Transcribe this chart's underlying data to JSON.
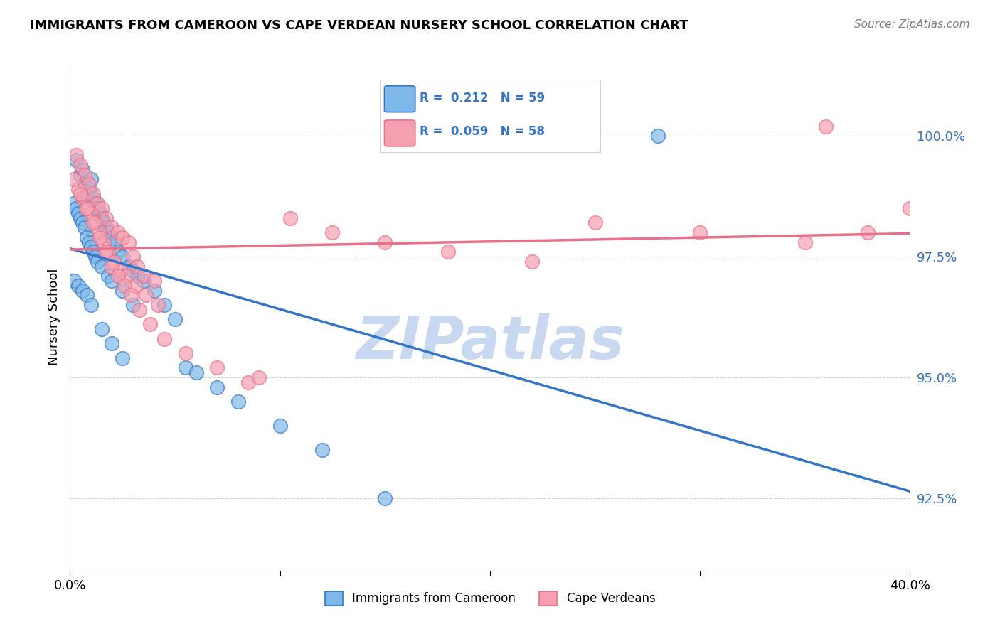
{
  "title": "IMMIGRANTS FROM CAMEROON VS CAPE VERDEAN NURSERY SCHOOL CORRELATION CHART",
  "source": "Source: ZipAtlas.com",
  "ylabel": "Nursery School",
  "ytick_labels": [
    "92.5%",
    "95.0%",
    "97.5%",
    "100.0%"
  ],
  "ytick_values": [
    92.5,
    95.0,
    97.5,
    100.0
  ],
  "xlim": [
    0.0,
    40.0
  ],
  "ylim": [
    91.0,
    101.5
  ],
  "color_blue": "#7EB8E8",
  "color_pink": "#F5A0B0",
  "color_blue_line": "#3575C8",
  "color_pink_line": "#E8708A",
  "color_blue_text": "#3575C8",
  "watermark_color": "#C8D8F0",
  "background": "#FFFFFF",
  "blue_x": [
    0.3,
    0.5,
    0.6,
    0.7,
    0.8,
    0.9,
    1.0,
    1.1,
    1.2,
    1.3,
    1.4,
    1.5,
    1.6,
    1.7,
    1.8,
    2.0,
    2.1,
    2.3,
    2.5,
    2.8,
    3.0,
    3.2,
    3.5,
    4.0,
    4.5,
    5.0,
    0.2,
    0.3,
    0.4,
    0.5,
    0.6,
    0.7,
    0.8,
    0.9,
    1.0,
    1.1,
    1.2,
    1.3,
    1.5,
    1.8,
    2.0,
    2.5,
    3.0,
    0.2,
    0.4,
    0.6,
    0.8,
    1.0,
    1.5,
    2.0,
    2.5,
    5.5,
    6.0,
    7.0,
    8.0,
    10.0,
    12.0,
    15.0,
    28.0
  ],
  "blue_y": [
    99.5,
    99.2,
    99.3,
    99.0,
    98.8,
    98.9,
    99.1,
    98.7,
    98.6,
    98.5,
    98.4,
    98.3,
    98.2,
    98.1,
    98.0,
    97.9,
    97.8,
    97.6,
    97.5,
    97.3,
    97.2,
    97.1,
    97.0,
    96.8,
    96.5,
    96.2,
    98.6,
    98.5,
    98.4,
    98.3,
    98.2,
    98.1,
    97.9,
    97.8,
    97.7,
    97.6,
    97.5,
    97.4,
    97.3,
    97.1,
    97.0,
    96.8,
    96.5,
    97.0,
    96.9,
    96.8,
    96.7,
    96.5,
    96.0,
    95.7,
    95.4,
    95.2,
    95.1,
    94.8,
    94.5,
    94.0,
    93.5,
    92.5,
    100.0
  ],
  "pink_x": [
    0.3,
    0.5,
    0.7,
    0.9,
    1.1,
    1.3,
    1.5,
    1.7,
    2.0,
    2.3,
    2.5,
    2.8,
    3.0,
    3.2,
    3.5,
    4.0,
    0.4,
    0.6,
    0.8,
    1.0,
    1.2,
    1.4,
    1.6,
    1.8,
    2.1,
    2.4,
    2.7,
    3.1,
    3.6,
    4.2,
    0.2,
    0.5,
    0.8,
    1.1,
    1.4,
    1.7,
    2.0,
    2.3,
    2.6,
    2.9,
    3.3,
    3.8,
    4.5,
    5.5,
    7.0,
    8.5,
    9.0,
    10.5,
    12.5,
    15.0,
    18.0,
    22.0,
    25.0,
    30.0,
    35.0,
    38.0,
    40.0,
    36.0
  ],
  "pink_y": [
    99.6,
    99.4,
    99.2,
    99.0,
    98.8,
    98.6,
    98.5,
    98.3,
    98.1,
    98.0,
    97.9,
    97.8,
    97.5,
    97.3,
    97.1,
    97.0,
    98.9,
    98.7,
    98.5,
    98.4,
    98.2,
    98.0,
    97.8,
    97.6,
    97.4,
    97.2,
    97.1,
    96.9,
    96.7,
    96.5,
    99.1,
    98.8,
    98.5,
    98.2,
    97.9,
    97.6,
    97.3,
    97.1,
    96.9,
    96.7,
    96.4,
    96.1,
    95.8,
    95.5,
    95.2,
    94.9,
    95.0,
    98.3,
    98.0,
    97.8,
    97.6,
    97.4,
    98.2,
    98.0,
    97.8,
    98.0,
    98.5,
    100.2
  ]
}
